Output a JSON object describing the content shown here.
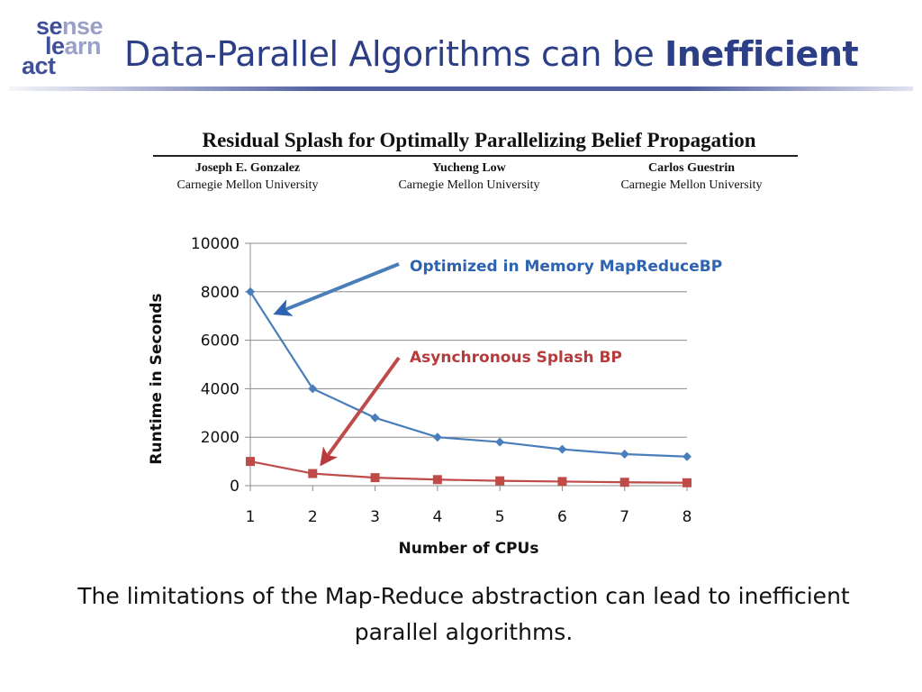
{
  "logo": {
    "line1_a": "se",
    "line1_b": "nse",
    "line2_a": "le",
    "line2_b": "arn",
    "line3_a": "act"
  },
  "slide": {
    "title_regular": "Data-Parallel Algorithms can be ",
    "title_bold": "Inefficient",
    "caption": "The limitations of the Map-Reduce abstraction can lead to inefficient parallel algorithms."
  },
  "paper": {
    "title": "Residual Splash for Optimally Parallelizing Belief Propagation",
    "authors": [
      {
        "name": "Joseph E. Gonzalez",
        "affiliation": "Carnegie Mellon University"
      },
      {
        "name": "Yucheng Low",
        "affiliation": "Carnegie Mellon University"
      },
      {
        "name": "Carlos Guestrin",
        "affiliation": "Carnegie Mellon University"
      }
    ]
  },
  "colors": {
    "accent": "#2b3e86",
    "series_blue": "#4a7ebb",
    "series_red": "#be4b48",
    "ann_blue": "#2e63b0",
    "ann_red": "#b83a3a"
  },
  "chart_data": {
    "type": "line",
    "title": "",
    "xlabel": "Number of CPUs",
    "ylabel": "Runtime in Seconds",
    "x": [
      1,
      2,
      3,
      4,
      5,
      6,
      7,
      8
    ],
    "xlim": [
      1,
      8
    ],
    "ylim": [
      0,
      10000
    ],
    "yticks": [
      0,
      2000,
      4000,
      6000,
      8000,
      10000
    ],
    "grid": true,
    "series": [
      {
        "name": "Optimized in Memory MapReduceBP",
        "color": "#4a7ebb",
        "marker": "diamond",
        "values": [
          8000,
          4000,
          2800,
          2000,
          1800,
          1500,
          1300,
          1200
        ]
      },
      {
        "name": "Asynchronous Splash BP",
        "color": "#be4b48",
        "marker": "square",
        "values": [
          1000,
          500,
          330,
          250,
          200,
          170,
          140,
          120
        ]
      }
    ],
    "annotations": [
      {
        "text": "Optimized in Memory MapReduceBP",
        "series": 0,
        "points_to_x": 1.5,
        "points_to_y": 7200
      },
      {
        "text": "Asynchronous Splash BP",
        "series": 1,
        "points_to_x": 2.2,
        "points_to_y": 1100
      }
    ]
  }
}
